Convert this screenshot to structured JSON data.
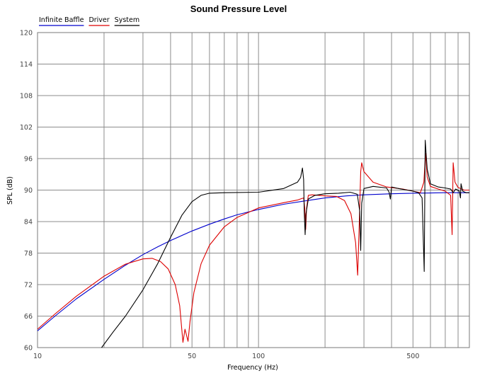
{
  "chart_data": {
    "type": "line",
    "title": "Sound Pressure Level",
    "xlabel": "Frequency (Hz)",
    "ylabel": "SPL (dB)",
    "x_scale": "log",
    "xlim": [
      10,
      900
    ],
    "ylim": [
      60,
      120
    ],
    "x_ticks": [
      {
        "value": 10,
        "label": "10"
      },
      {
        "value": 50,
        "label": "50"
      },
      {
        "value": 100,
        "label": "100"
      },
      {
        "value": 500,
        "label": "500"
      }
    ],
    "y_ticks": [
      {
        "value": 60,
        "label": "60"
      },
      {
        "value": 66,
        "label": "66"
      },
      {
        "value": 72,
        "label": "72"
      },
      {
        "value": 78,
        "label": "78"
      },
      {
        "value": 84,
        "label": "84"
      },
      {
        "value": 90,
        "label": "90"
      },
      {
        "value": 96,
        "label": "96"
      },
      {
        "value": 102,
        "label": "102"
      },
      {
        "value": 108,
        "label": "108"
      },
      {
        "value": 114,
        "label": "114"
      },
      {
        "value": 120,
        "label": "120"
      }
    ],
    "grid": true,
    "legend_position": "top-left",
    "series": [
      {
        "name": "Infinite Baffle",
        "color": "#0000cc",
        "points": [
          [
            10,
            63.2
          ],
          [
            12,
            66.0
          ],
          [
            15,
            69.3
          ],
          [
            20,
            73.0
          ],
          [
            25,
            75.7
          ],
          [
            30,
            77.7
          ],
          [
            35,
            79.2
          ],
          [
            40,
            80.4
          ],
          [
            50,
            82.2
          ],
          [
            60,
            83.5
          ],
          [
            70,
            84.5
          ],
          [
            80,
            85.3
          ],
          [
            100,
            86.3
          ],
          [
            130,
            87.3
          ],
          [
            160,
            87.9
          ],
          [
            200,
            88.5
          ],
          [
            250,
            88.9
          ],
          [
            300,
            89.1
          ],
          [
            400,
            89.3
          ],
          [
            500,
            89.4
          ],
          [
            600,
            89.45
          ],
          [
            700,
            89.5
          ],
          [
            900,
            89.5
          ]
        ]
      },
      {
        "name": "Driver",
        "color": "#dd0000",
        "points": [
          [
            10,
            63.5
          ],
          [
            12,
            66.4
          ],
          [
            15,
            69.8
          ],
          [
            20,
            73.6
          ],
          [
            25,
            75.9
          ],
          [
            30,
            76.9
          ],
          [
            33,
            77.0
          ],
          [
            36,
            76.4
          ],
          [
            39,
            75.0
          ],
          [
            42,
            72.0
          ],
          [
            44,
            68.0
          ],
          [
            45.5,
            61.0
          ],
          [
            46.5,
            63.5
          ],
          [
            48,
            61.2
          ],
          [
            49,
            65.0
          ],
          [
            51,
            70.5
          ],
          [
            55,
            76.0
          ],
          [
            60,
            79.5
          ],
          [
            70,
            83.0
          ],
          [
            80,
            84.8
          ],
          [
            100,
            86.6
          ],
          [
            130,
            87.6
          ],
          [
            150,
            88.1
          ],
          [
            157,
            88.4
          ],
          [
            160,
            88.5
          ],
          [
            162,
            86.5
          ],
          [
            163.5,
            82.5
          ],
          [
            165,
            86.5
          ],
          [
            168,
            89.0
          ],
          [
            175,
            89.1
          ],
          [
            200,
            88.9
          ],
          [
            225,
            88.8
          ],
          [
            245,
            88.0
          ],
          [
            262,
            85.5
          ],
          [
            275,
            80.0
          ],
          [
            281,
            73.8
          ],
          [
            285,
            82.0
          ],
          [
            290,
            93.5
          ],
          [
            293,
            95.2
          ],
          [
            300,
            93.5
          ],
          [
            330,
            91.5
          ],
          [
            380,
            90.6
          ],
          [
            450,
            90.2
          ],
          [
            500,
            89.8
          ],
          [
            540,
            89.5
          ],
          [
            560,
            91.5
          ],
          [
            570,
            97.0
          ],
          [
            580,
            92.5
          ],
          [
            600,
            90.7
          ],
          [
            650,
            90.2
          ],
          [
            700,
            89.8
          ],
          [
            740,
            89.0
          ],
          [
            752,
            81.5
          ],
          [
            760,
            95.2
          ],
          [
            775,
            91.5
          ],
          [
            800,
            90.5
          ],
          [
            850,
            90.0
          ],
          [
            900,
            90.0
          ]
        ]
      },
      {
        "name": "System",
        "color": "#000000",
        "points": [
          [
            19.5,
            60.0
          ],
          [
            22,
            63.0
          ],
          [
            25,
            66.0
          ],
          [
            30,
            71.0
          ],
          [
            35,
            76.0
          ],
          [
            40,
            81.0
          ],
          [
            45,
            85.2
          ],
          [
            50,
            87.8
          ],
          [
            55,
            89.0
          ],
          [
            60,
            89.4
          ],
          [
            70,
            89.5
          ],
          [
            100,
            89.6
          ],
          [
            130,
            90.3
          ],
          [
            150,
            91.5
          ],
          [
            155,
            92.4
          ],
          [
            158,
            94.2
          ],
          [
            160,
            92.0
          ],
          [
            161,
            86.0
          ],
          [
            162.5,
            81.5
          ],
          [
            164,
            85.5
          ],
          [
            168,
            88.3
          ],
          [
            180,
            89.0
          ],
          [
            200,
            89.3
          ],
          [
            230,
            89.4
          ],
          [
            260,
            89.6
          ],
          [
            280,
            89.2
          ],
          [
            287,
            86.0
          ],
          [
            290,
            78.5
          ],
          [
            293,
            87.5
          ],
          [
            300,
            90.3
          ],
          [
            330,
            90.7
          ],
          [
            380,
            90.4
          ],
          [
            390,
            89.6
          ],
          [
            395,
            88.3
          ],
          [
            400,
            90.6
          ],
          [
            430,
            90.3
          ],
          [
            500,
            89.8
          ],
          [
            530,
            89.5
          ],
          [
            550,
            88.5
          ],
          [
            562,
            74.5
          ],
          [
            568,
            99.5
          ],
          [
            580,
            94.0
          ],
          [
            600,
            91.2
          ],
          [
            650,
            90.6
          ],
          [
            700,
            90.4
          ],
          [
            740,
            90.2
          ],
          [
            760,
            89.5
          ],
          [
            780,
            90.2
          ],
          [
            810,
            89.8
          ],
          [
            820,
            88.5
          ],
          [
            825,
            91.2
          ],
          [
            840,
            89.8
          ],
          [
            870,
            89.5
          ],
          [
            900,
            89.5
          ]
        ]
      }
    ]
  }
}
